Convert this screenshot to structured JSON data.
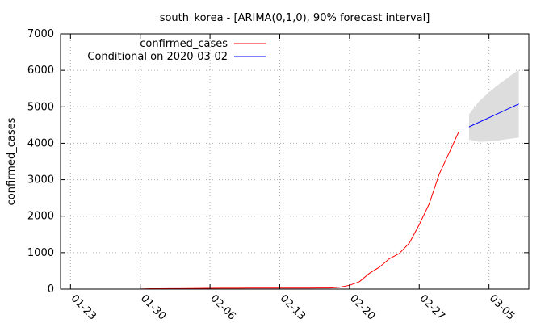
{
  "chart_data": {
    "type": "line",
    "title": "south_korea -  [ARIMA(0,1,0), 90% forecast interval]",
    "xlabel": "",
    "ylabel": "confirmed_cases",
    "x_tick_labels": [
      "01-23",
      "01-30",
      "02-06",
      "02-13",
      "02-20",
      "02-27",
      "03-05"
    ],
    "ylim": [
      0,
      7000
    ],
    "y_ticks": [
      0,
      1000,
      2000,
      3000,
      4000,
      5000,
      6000,
      7000
    ],
    "xlim": [
      "2020-01-22",
      "2020-03-09"
    ],
    "grid": true,
    "legend_position": "top-left",
    "series": [
      {
        "name": "confirmed_cases",
        "color": "#ff0000",
        "x": [
          "2020-01-30",
          "2020-01-31",
          "2020-02-01",
          "2020-02-02",
          "2020-02-03",
          "2020-02-04",
          "2020-02-05",
          "2020-02-06",
          "2020-02-07",
          "2020-02-08",
          "2020-02-09",
          "2020-02-10",
          "2020-02-11",
          "2020-02-12",
          "2020-02-13",
          "2020-02-14",
          "2020-02-15",
          "2020-02-16",
          "2020-02-17",
          "2020-02-18",
          "2020-02-19",
          "2020-02-20",
          "2020-02-21",
          "2020-02-22",
          "2020-02-23",
          "2020-02-24",
          "2020-02-25",
          "2020-02-26",
          "2020-02-27",
          "2020-02-28",
          "2020-02-29",
          "2020-03-01",
          "2020-03-02"
        ],
        "y": [
          4,
          11,
          12,
          15,
          15,
          16,
          19,
          23,
          24,
          24,
          25,
          27,
          28,
          28,
          28,
          28,
          28,
          29,
          30,
          31,
          51,
          104,
          204,
          433,
          602,
          833,
          977,
          1261,
          1766,
          2337,
          3150,
          3736,
          4335
        ]
      },
      {
        "name": "Conditional on 2020-03-02",
        "color": "#0000ff",
        "x": [
          "2020-03-03",
          "2020-03-08"
        ],
        "y": [
          4450,
          5080
        ]
      }
    ],
    "forecast_interval": {
      "color": "#dddddd",
      "x": [
        "2020-03-03",
        "2020-03-04",
        "2020-03-05",
        "2020-03-06",
        "2020-03-07",
        "2020-03-08"
      ],
      "upper": [
        4800,
        5150,
        5400,
        5620,
        5820,
        6020
      ],
      "lower": [
        4100,
        4040,
        4050,
        4080,
        4120,
        4160
      ]
    }
  }
}
